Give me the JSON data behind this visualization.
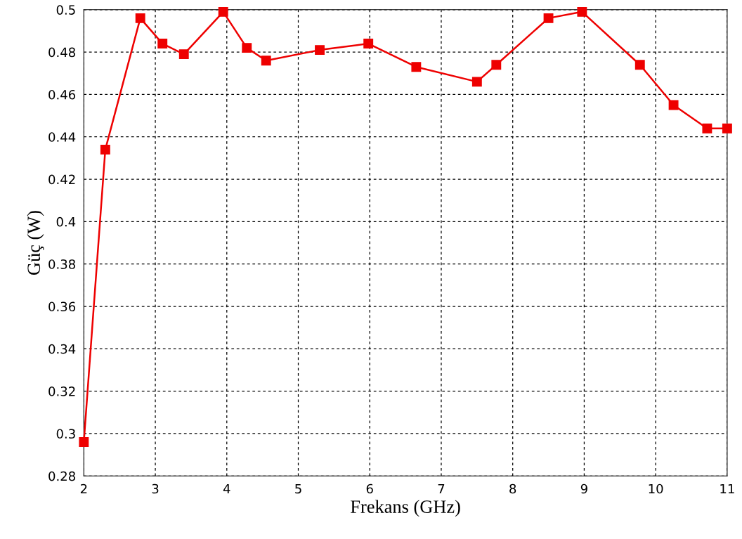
{
  "chart_data": {
    "type": "line",
    "xlabel": "Frekans (GHz)",
    "ylabel": "Güç (W)",
    "x": [
      2,
      2.3,
      2.79,
      3.1,
      3.4,
      3.95,
      4.28,
      4.55,
      5.3,
      5.98,
      6.65,
      7.5,
      7.77,
      8.5,
      8.97,
      9.78,
      10.25,
      10.72,
      11
    ],
    "series": [
      {
        "color": "#ee0000",
        "values": [
          0.296,
          0.434,
          0.496,
          0.484,
          0.479,
          0.499,
          0.482,
          0.476,
          0.481,
          0.484,
          0.473,
          0.466,
          0.474,
          0.496,
          0.499,
          0.474,
          0.455,
          0.444,
          0.444
        ]
      }
    ],
    "xlim": [
      2,
      11
    ],
    "xticks": [
      2,
      3,
      4,
      5,
      6,
      7,
      8,
      9,
      10,
      11
    ],
    "ylim": [
      0.28,
      0.5
    ],
    "yticks": [
      0.28,
      0.3,
      0.32,
      0.34,
      0.36,
      0.38,
      0.4,
      0.42,
      0.44,
      0.46,
      0.48,
      0.5
    ],
    "grid": true,
    "marker": "square",
    "line_style": "solid",
    "legend": false
  }
}
